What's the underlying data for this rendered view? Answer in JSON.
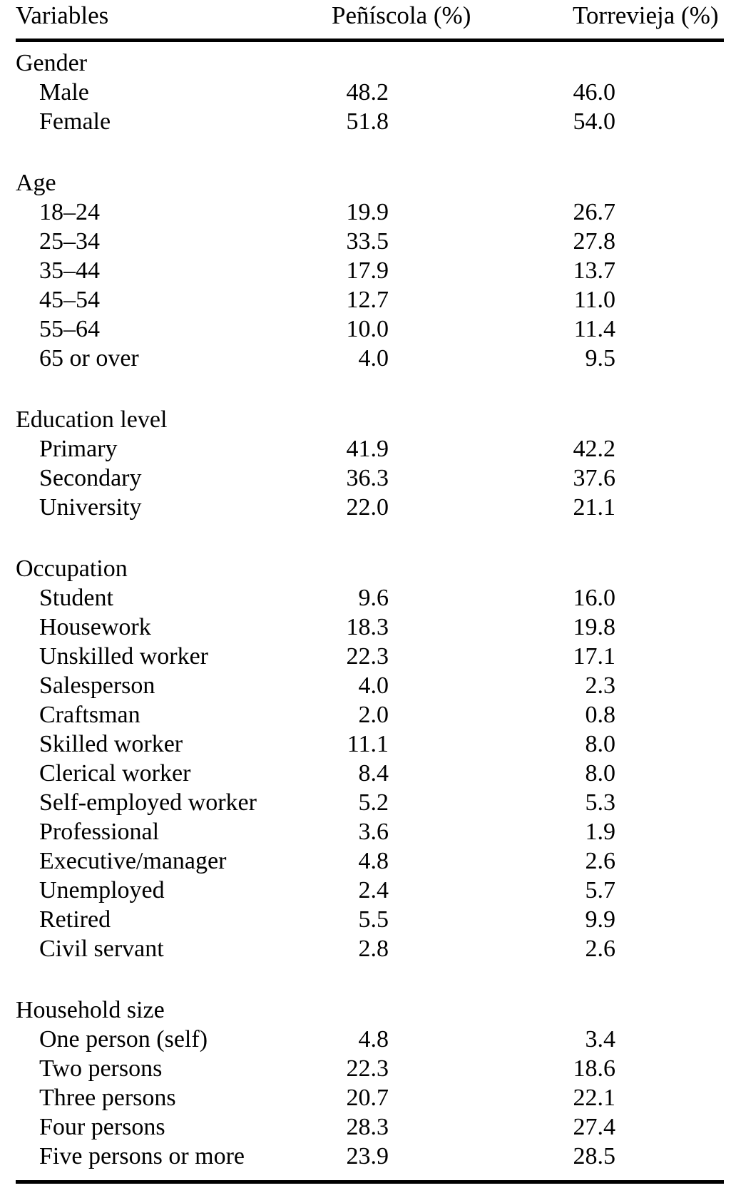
{
  "page": {
    "background_color": "#ffffff",
    "text_color": "#000000",
    "rule_color": "#000000"
  },
  "table": {
    "columns": [
      "Variables",
      "Peñíscola (%)",
      "Torrevieja (%)"
    ],
    "sections": [
      {
        "title": "Gender",
        "rows": [
          {
            "label": "Male",
            "peniscola": "48.2",
            "torrevieja": "46.0"
          },
          {
            "label": "Female",
            "peniscola": "51.8",
            "torrevieja": "54.0"
          }
        ]
      },
      {
        "title": "Age",
        "rows": [
          {
            "label": "18–24",
            "peniscola": "19.9",
            "torrevieja": "26.7"
          },
          {
            "label": "25–34",
            "peniscola": "33.5",
            "torrevieja": "27.8"
          },
          {
            "label": "35–44",
            "peniscola": "17.9",
            "torrevieja": "13.7"
          },
          {
            "label": "45–54",
            "peniscola": "12.7",
            "torrevieja": "11.0"
          },
          {
            "label": "55–64",
            "peniscola": "10.0",
            "torrevieja": "11.4"
          },
          {
            "label": "65 or over",
            "peniscola": "4.0",
            "torrevieja": "9.5"
          }
        ]
      },
      {
        "title": "Education level",
        "rows": [
          {
            "label": "Primary",
            "peniscola": "41.9",
            "torrevieja": "42.2"
          },
          {
            "label": "Secondary",
            "peniscola": "36.3",
            "torrevieja": "37.6"
          },
          {
            "label": "University",
            "peniscola": "22.0",
            "torrevieja": "21.1"
          }
        ]
      },
      {
        "title": "Occupation",
        "rows": [
          {
            "label": "Student",
            "peniscola": "9.6",
            "torrevieja": "16.0"
          },
          {
            "label": "Housework",
            "peniscola": "18.3",
            "torrevieja": "19.8"
          },
          {
            "label": "Unskilled worker",
            "peniscola": "22.3",
            "torrevieja": "17.1"
          },
          {
            "label": "Salesperson",
            "peniscola": "4.0",
            "torrevieja": "2.3"
          },
          {
            "label": "Craftsman",
            "peniscola": "2.0",
            "torrevieja": "0.8"
          },
          {
            "label": "Skilled worker",
            "peniscola": "11.1",
            "torrevieja": "8.0"
          },
          {
            "label": "Clerical worker",
            "peniscola": "8.4",
            "torrevieja": "8.0"
          },
          {
            "label": "Self-employed worker",
            "peniscola": "5.2",
            "torrevieja": "5.3"
          },
          {
            "label": "Professional",
            "peniscola": "3.6",
            "torrevieja": "1.9"
          },
          {
            "label": "Executive/manager",
            "peniscola": "4.8",
            "torrevieja": "2.6"
          },
          {
            "label": "Unemployed",
            "peniscola": "2.4",
            "torrevieja": "5.7"
          },
          {
            "label": "Retired",
            "peniscola": "5.5",
            "torrevieja": "9.9"
          },
          {
            "label": "Civil servant",
            "peniscola": "2.8",
            "torrevieja": "2.6"
          }
        ]
      },
      {
        "title": "Household size",
        "rows": [
          {
            "label": "One person (self)",
            "peniscola": "4.8",
            "torrevieja": "3.4"
          },
          {
            "label": "Two persons",
            "peniscola": "22.3",
            "torrevieja": "18.6"
          },
          {
            "label": "Three persons",
            "peniscola": "20.7",
            "torrevieja": "22.1"
          },
          {
            "label": "Four persons",
            "peniscola": "28.3",
            "torrevieja": "27.4"
          },
          {
            "label": "Five persons or more",
            "peniscola": "23.9",
            "torrevieja": "28.5"
          }
        ]
      }
    ]
  }
}
